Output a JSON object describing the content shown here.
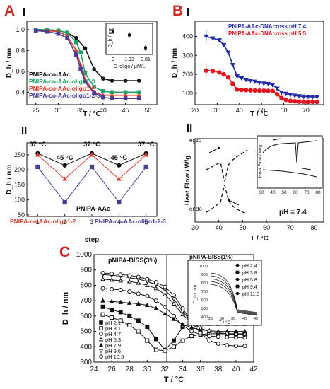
{
  "panels": {
    "A": {
      "letter": "A"
    },
    "B": {
      "letter": "B"
    },
    "C": {
      "letter": "C"
    }
  },
  "colors": {
    "black": "#111111",
    "green": "#1fa363",
    "red": "#e03a2e",
    "purple": "#4b3a9a",
    "blue": "#1f2aa8",
    "brightred": "#e8101b",
    "panel_letter": "#d42020"
  },
  "chart_data": [
    {
      "id": "A-I",
      "type": "line",
      "roman": "I",
      "xlabel": "T / °C",
      "ylabel": "D_h / nm",
      "xlim": [
        23,
        52
      ],
      "ylim": [
        0.28,
        1.08
      ],
      "xticks": [
        "25",
        "30",
        "35",
        "40",
        "45",
        "50"
      ],
      "yticks": [
        "0.4",
        "0.6",
        "0.8",
        "1.0"
      ],
      "legend": [
        "PNIPA-co-AAc",
        "PNIPA-co-AAc-oligo1-3",
        "PNIPA-co-AAc-oligo1-2",
        "PNIPA-co-AAc-oligo1-2-3"
      ],
      "series": [
        {
          "name": "PNIPA-co-AAc",
          "color": "#111111",
          "marker": "circle",
          "x": [
            25,
            27.5,
            30,
            32,
            34,
            36,
            38,
            40,
            42,
            45,
            48
          ],
          "y": [
            1.0,
            1.0,
            0.99,
            0.97,
            0.92,
            0.82,
            0.62,
            0.53,
            0.51,
            0.51,
            0.51
          ]
        },
        {
          "name": "PNIPA-co-AAc-oligo1-3",
          "color": "#1fa363",
          "marker": "square",
          "x": [
            25,
            27.5,
            30,
            32,
            34,
            35,
            36,
            38,
            40,
            42,
            45,
            48
          ],
          "y": [
            1.0,
            1.0,
            0.99,
            0.97,
            0.88,
            0.78,
            0.58,
            0.45,
            0.41,
            0.4,
            0.4,
            0.4
          ]
        },
        {
          "name": "PNIPA-co-AAc-oligo1-2",
          "color": "#e03a2e",
          "marker": "triangle",
          "x": [
            25,
            27.5,
            30,
            32,
            34,
            35,
            36,
            38,
            40,
            42,
            45,
            48
          ],
          "y": [
            0.99,
            0.99,
            0.98,
            0.94,
            0.8,
            0.66,
            0.52,
            0.4,
            0.37,
            0.37,
            0.37,
            0.37
          ]
        },
        {
          "name": "PNIPA-co-AAc-oligo1-2-3",
          "color": "#4b3a9a",
          "marker": "square",
          "x": [
            25,
            27.5,
            30,
            32,
            34,
            35,
            36,
            38,
            40,
            42,
            45,
            48
          ],
          "y": [
            0.99,
            0.98,
            0.96,
            0.92,
            0.76,
            0.62,
            0.5,
            0.39,
            0.35,
            0.34,
            0.34,
            0.34
          ]
        }
      ],
      "inset": {
        "xlabel": "C_oligo / μM/L",
        "ylabel": "D_h / nm",
        "categories": [
          "0",
          "1.93",
          "3.81"
        ],
        "values": [
          255,
          245,
          212
        ],
        "ylim": [
          195,
          275
        ]
      }
    },
    {
      "id": "A-II",
      "type": "line",
      "roman": "II",
      "xlabel": "step",
      "ylabel": "D_h / nm",
      "xlim": [
        0.6,
        5.4
      ],
      "ylim": [
        45,
        290
      ],
      "xticks": [
        "1",
        "2",
        "3",
        "4",
        "5"
      ],
      "yticks": [
        "50",
        "100",
        "150",
        "200",
        "250"
      ],
      "annotations": [
        "37 °C",
        "45 °C",
        "37 °C",
        "45 °C",
        "37 °C"
      ],
      "series_labels": [
        "PNIPA-AAc",
        "PNIPA-co-AAc-oligo1-2",
        "PNIPA-co-AAc-oligo1-2-3"
      ],
      "series": [
        {
          "name": "PNIPA-AAc",
          "color": "#111111",
          "marker": "circle",
          "x": [
            1,
            2,
            3,
            4,
            5
          ],
          "y": [
            255,
            215,
            255,
            215,
            255
          ]
        },
        {
          "name": "PNIPA-co-AAc-oligo1-2",
          "color": "#e03a2e",
          "marker": "triangle",
          "x": [
            1,
            2,
            3,
            4,
            5
          ],
          "y": [
            250,
            170,
            250,
            170,
            250
          ]
        },
        {
          "name": "PNIPA-co-AAc-oligo1-2-3",
          "color": "#4b3a9a",
          "marker": "square",
          "x": [
            1,
            2,
            3,
            4,
            5
          ],
          "y": [
            210,
            92,
            210,
            92,
            210
          ]
        }
      ]
    },
    {
      "id": "B-I",
      "type": "line",
      "roman": "I",
      "xlabel": "T / °C",
      "ylabel": "D_h / nm",
      "xlim": [
        20,
        78
      ],
      "ylim": [
        40,
        480
      ],
      "xticks": [
        "20",
        "30",
        "40",
        "50",
        "60",
        "70"
      ],
      "yticks": [
        "100",
        "200",
        "300",
        "400"
      ],
      "legend": [
        "PNIPA-AAc-DNAcross pH 7.4",
        "PNIPA-AAc-DNAcross pH 5.5"
      ],
      "series": [
        {
          "name": "PNIPA-AAc-DNAcross pH 7.4",
          "color": "#1f2aa8",
          "marker": "triangle-down",
          "x": [
            25,
            28,
            31,
            33,
            35,
            37,
            39,
            41,
            43,
            45,
            47,
            49,
            51,
            53,
            55,
            57,
            59,
            61,
            63,
            65,
            67,
            69,
            71,
            73,
            75
          ],
          "y": [
            400,
            390,
            380,
            355,
            315,
            250,
            190,
            180,
            172,
            168,
            162,
            156,
            152,
            150,
            145,
            125,
            105,
            98,
            92,
            88,
            85,
            83,
            82,
            81,
            81
          ]
        },
        {
          "name": "PNIPA-AAc-DNAcross pH 5.5",
          "color": "#e8101b",
          "marker": "circle",
          "x": [
            25,
            28,
            31,
            33,
            35,
            37,
            39,
            41,
            43,
            45,
            47,
            49,
            51,
            53,
            55,
            57,
            59,
            61,
            63,
            65,
            67,
            69,
            71,
            73,
            75
          ],
          "y": [
            220,
            218,
            210,
            200,
            185,
            150,
            120,
            118,
            117,
            116,
            115,
            114,
            114,
            113,
            112,
            95,
            75,
            65,
            60,
            58,
            56,
            56,
            55,
            55,
            55
          ]
        }
      ]
    },
    {
      "id": "B-II",
      "type": "line",
      "roman": "II",
      "xlabel": "T / °C",
      "ylabel": "Heat Flow / W/g",
      "xlim": [
        30,
        84
      ],
      "xticks": [
        "30",
        "40",
        "50",
        "60",
        "70",
        "80"
      ],
      "top_label": "egzo",
      "bottom_label": "endo",
      "note": "pH = 7.4",
      "inset": {
        "ylabel": "Heat Flow / W/g",
        "xticks": [
          "30",
          "40",
          "50",
          "60",
          "70",
          "80"
        ]
      }
    },
    {
      "id": "C",
      "type": "line",
      "title": "pNIPA-BISS(3%)",
      "xlabel": "T / °C",
      "ylabel": "D_h / nm",
      "xlim": [
        24,
        42
      ],
      "ylim": [
        300,
        1000
      ],
      "xticks": [
        "24",
        "26",
        "28",
        "30",
        "32",
        "34",
        "36",
        "38",
        "40",
        "42"
      ],
      "yticks": [
        "300",
        "400",
        "500",
        "600",
        "700",
        "800",
        "900",
        "1000"
      ],
      "legend": [
        "pH 2.1",
        "pH 3.1",
        "pH 4.7",
        "pH 6.3",
        "pH 7.9",
        "pH 9.6",
        "pH 10.5"
      ],
      "series": [
        {
          "name": "pH 2.1",
          "marker": "square-filled",
          "x": [
            25,
            26,
            27,
            28,
            29,
            30,
            31,
            32,
            33,
            34,
            35,
            36,
            37,
            38,
            39,
            40,
            41
          ],
          "y": [
            660,
            640,
            625,
            600,
            570,
            530,
            450,
            380,
            440,
            530,
            555,
            555,
            550,
            550,
            550,
            550,
            550
          ]
        },
        {
          "name": "pH 3.1",
          "marker": "square-open",
          "x": [
            25,
            26,
            27,
            28,
            29,
            30,
            31,
            32,
            33,
            34,
            35,
            36,
            37,
            38,
            39,
            40,
            41
          ],
          "y": [
            610,
            590,
            570,
            540,
            500,
            440,
            380,
            375,
            400,
            440,
            470,
            480,
            485,
            485,
            485,
            485,
            485
          ]
        },
        {
          "name": "pH 4.7",
          "marker": "circle-open",
          "x": [
            25,
            26,
            27,
            28,
            29,
            30,
            31,
            32,
            33,
            34,
            35,
            36,
            37,
            38,
            39,
            40,
            41
          ],
          "y": [
            780,
            775,
            770,
            760,
            745,
            730,
            700,
            660,
            600,
            540,
            500,
            480,
            470,
            465,
            462,
            460,
            460
          ]
        },
        {
          "name": "pH 6.3",
          "marker": "triangle-open",
          "x": [
            25,
            26,
            27,
            28,
            29,
            30,
            31,
            32,
            33,
            34,
            35,
            36,
            37,
            38,
            39,
            40,
            41
          ],
          "y": [
            840,
            835,
            830,
            825,
            815,
            800,
            780,
            740,
            680,
            610,
            555,
            520,
            500,
            490,
            485,
            480,
            480
          ]
        },
        {
          "name": "pH 7.9",
          "marker": "triangle-filled",
          "x": [
            25,
            26,
            27,
            28,
            29,
            30,
            31,
            32,
            33,
            34,
            35,
            36,
            37,
            38,
            39,
            40,
            41
          ],
          "y": [
            700,
            695,
            690,
            685,
            680,
            670,
            650,
            615,
            580,
            545,
            525,
            510,
            505,
            500,
            500,
            500,
            500
          ]
        },
        {
          "name": "pH 9.6",
          "marker": "triangle-down-open",
          "x": [
            25,
            26,
            27,
            28,
            29,
            30,
            31,
            32,
            33,
            34,
            35,
            36,
            37,
            38,
            39,
            40,
            41
          ],
          "y": [
            870,
            865,
            860,
            850,
            840,
            825,
            805,
            770,
            710,
            630,
            560,
            520,
            500,
            490,
            485,
            480,
            480
          ]
        },
        {
          "name": "pH 10.5",
          "marker": "circle-open-small",
          "x": [
            25,
            26,
            27,
            28,
            29,
            30,
            31,
            32,
            33,
            34,
            35,
            36,
            37,
            38,
            39,
            40,
            41
          ],
          "y": [
            880,
            875,
            870,
            865,
            855,
            840,
            820,
            790,
            735,
            650,
            560,
            490,
            440,
            420,
            410,
            405,
            405
          ]
        }
      ],
      "inset": {
        "title": "pNIPA-BISS(1%)",
        "xlabel": "T / °C",
        "ylabel": "D_h / nm",
        "xticks": [
          "25",
          "30",
          "35",
          "40",
          "45"
        ],
        "yticks": [
          "400",
          "500",
          "600",
          "700",
          "800",
          "900",
          "1000"
        ],
        "legend": [
          "pH 2.4",
          "pH 3.8",
          "pH 5.8",
          "pH 9.4",
          "pH 11.3"
        ]
      }
    }
  ]
}
